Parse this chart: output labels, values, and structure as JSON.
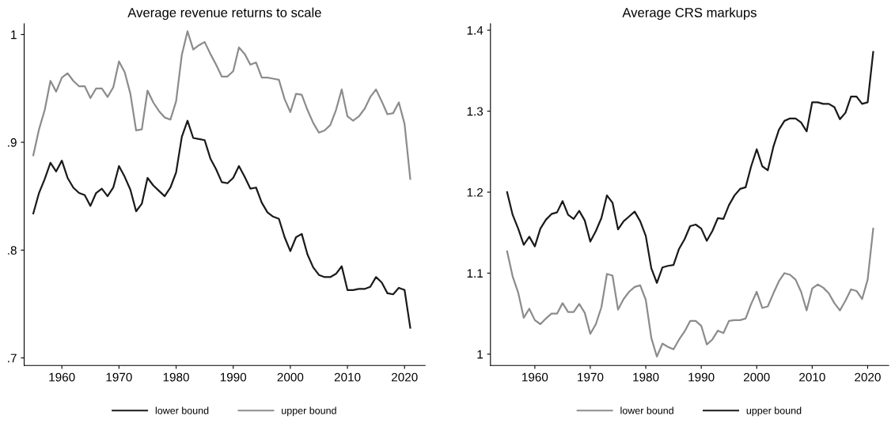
{
  "chart_data": [
    {
      "type": "line",
      "title": "Average revenue returns to scale",
      "x": [
        1955,
        1956,
        1957,
        1958,
        1959,
        1960,
        1961,
        1962,
        1963,
        1964,
        1965,
        1966,
        1967,
        1968,
        1969,
        1970,
        1971,
        1972,
        1973,
        1974,
        1975,
        1976,
        1977,
        1978,
        1979,
        1980,
        1981,
        1982,
        1983,
        1984,
        1985,
        1986,
        1987,
        1988,
        1989,
        1990,
        1991,
        1992,
        1993,
        1994,
        1995,
        1996,
        1997,
        1998,
        1999,
        2000,
        2001,
        2002,
        2003,
        2004,
        2005,
        2006,
        2007,
        2008,
        2009,
        2010,
        2011,
        2012,
        2013,
        2014,
        2015,
        2016,
        2017,
        2018,
        2019,
        2020,
        2021
      ],
      "series": [
        {
          "name": "lower bound",
          "color": "#1a1a1a",
          "values": [
            0.834,
            0.853,
            0.866,
            0.881,
            0.873,
            0.883,
            0.867,
            0.858,
            0.853,
            0.851,
            0.841,
            0.853,
            0.857,
            0.85,
            0.858,
            0.878,
            0.868,
            0.856,
            0.836,
            0.843,
            0.867,
            0.86,
            0.855,
            0.85,
            0.858,
            0.872,
            0.905,
            0.92,
            0.904,
            0.903,
            0.902,
            0.885,
            0.875,
            0.863,
            0.862,
            0.867,
            0.878,
            0.868,
            0.857,
            0.858,
            0.844,
            0.835,
            0.831,
            0.829,
            0.812,
            0.799,
            0.812,
            0.815,
            0.796,
            0.784,
            0.777,
            0.775,
            0.775,
            0.778,
            0.785,
            0.763,
            0.763,
            0.764,
            0.764,
            0.766,
            0.775,
            0.77,
            0.76,
            0.759,
            0.765,
            0.763,
            0.728
          ]
        },
        {
          "name": "upper bound",
          "color": "#8c8c8c",
          "values": [
            0.888,
            0.912,
            0.93,
            0.957,
            0.947,
            0.96,
            0.964,
            0.957,
            0.952,
            0.952,
            0.941,
            0.95,
            0.95,
            0.942,
            0.951,
            0.975,
            0.965,
            0.945,
            0.911,
            0.912,
            0.948,
            0.937,
            0.929,
            0.923,
            0.921,
            0.938,
            0.981,
            1.003,
            0.986,
            0.99,
            0.993,
            0.982,
            0.972,
            0.961,
            0.961,
            0.966,
            0.988,
            0.982,
            0.972,
            0.974,
            0.96,
            0.96,
            0.959,
            0.958,
            0.94,
            0.928,
            0.945,
            0.944,
            0.93,
            0.918,
            0.909,
            0.911,
            0.916,
            0.93,
            0.949,
            0.924,
            0.92,
            0.924,
            0.931,
            0.942,
            0.949,
            0.938,
            0.926,
            0.927,
            0.937,
            0.917,
            0.866
          ]
        }
      ],
      "xlim": [
        1953.4,
        2023.6
      ],
      "xticks": [
        1960,
        1970,
        1980,
        1990,
        2000,
        2010,
        2020
      ],
      "ylim": [
        0.693,
        1.01
      ],
      "yticks": [
        {
          "value": 0.7,
          "label": ".7"
        },
        {
          "value": 0.8,
          "label": ".8"
        },
        {
          "value": 0.9,
          "label": ".9"
        },
        1
      ],
      "legend": "bottom",
      "grid": false,
      "line_style": "solid",
      "marker": "none"
    },
    {
      "type": "line",
      "title": "Average CRS markups",
      "x": [
        1955,
        1956,
        1957,
        1958,
        1959,
        1960,
        1961,
        1962,
        1963,
        1964,
        1965,
        1966,
        1967,
        1968,
        1969,
        1970,
        1971,
        1972,
        1973,
        1974,
        1975,
        1976,
        1977,
        1978,
        1979,
        1980,
        1981,
        1982,
        1983,
        1984,
        1985,
        1986,
        1987,
        1988,
        1989,
        1990,
        1991,
        1992,
        1993,
        1994,
        1995,
        1996,
        1997,
        1998,
        1999,
        2000,
        2001,
        2002,
        2003,
        2004,
        2005,
        2006,
        2007,
        2008,
        2009,
        2010,
        2011,
        2012,
        2013,
        2014,
        2015,
        2016,
        2017,
        2018,
        2019,
        2020,
        2021
      ],
      "series": [
        {
          "name": "lower bound",
          "color": "#8c8c8c",
          "values": [
            1.127,
            1.096,
            1.076,
            1.045,
            1.056,
            1.042,
            1.037,
            1.044,
            1.05,
            1.05,
            1.063,
            1.052,
            1.052,
            1.062,
            1.051,
            1.025,
            1.037,
            1.058,
            1.099,
            1.097,
            1.055,
            1.068,
            1.077,
            1.083,
            1.085,
            1.067,
            1.02,
            0.997,
            1.013,
            1.009,
            1.006,
            1.018,
            1.028,
            1.041,
            1.041,
            1.035,
            1.012,
            1.018,
            1.029,
            1.026,
            1.041,
            1.042,
            1.042,
            1.044,
            1.062,
            1.077,
            1.057,
            1.059,
            1.075,
            1.09,
            1.1,
            1.098,
            1.092,
            1.077,
            1.054,
            1.081,
            1.086,
            1.082,
            1.075,
            1.063,
            1.054,
            1.066,
            1.08,
            1.078,
            1.068,
            1.092,
            1.155
          ]
        },
        {
          "name": "upper bound",
          "color": "#1a1a1a",
          "values": [
            1.2,
            1.172,
            1.155,
            1.135,
            1.145,
            1.133,
            1.155,
            1.166,
            1.173,
            1.175,
            1.189,
            1.172,
            1.167,
            1.177,
            1.165,
            1.139,
            1.152,
            1.168,
            1.196,
            1.187,
            1.154,
            1.164,
            1.17,
            1.176,
            1.164,
            1.146,
            1.106,
            1.088,
            1.107,
            1.109,
            1.11,
            1.13,
            1.142,
            1.158,
            1.16,
            1.155,
            1.14,
            1.152,
            1.168,
            1.167,
            1.184,
            1.196,
            1.204,
            1.206,
            1.232,
            1.253,
            1.232,
            1.227,
            1.256,
            1.277,
            1.288,
            1.291,
            1.291,
            1.286,
            1.275,
            1.311,
            1.311,
            1.309,
            1.309,
            1.305,
            1.29,
            1.298,
            1.318,
            1.318,
            1.309,
            1.311,
            1.373
          ]
        }
      ],
      "xlim": [
        1952.0,
        2023.8
      ],
      "xticks": [
        1960,
        1970,
        1980,
        1990,
        2000,
        2010,
        2020
      ],
      "ylim": [
        0.986,
        1.408
      ],
      "yticks": [
        1,
        1.1,
        1.2,
        1.3,
        1.4
      ],
      "legend": "bottom",
      "grid": false,
      "line_style": "solid",
      "marker": "none"
    }
  ]
}
